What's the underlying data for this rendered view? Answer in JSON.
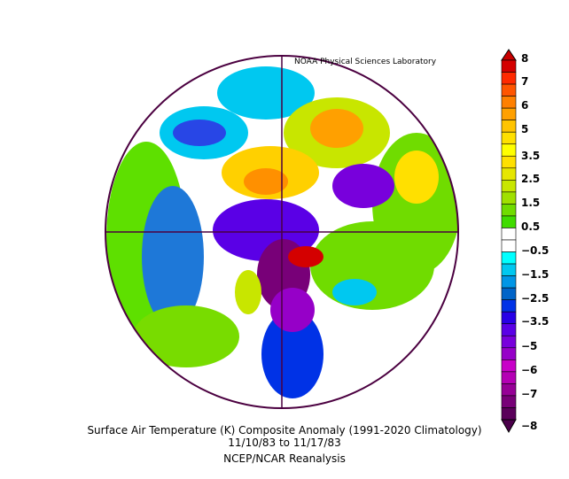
{
  "credit": "NOAA Physical Sciences Laboratory",
  "title": "Surface Air Temperature (K) Composite Anomaly (1991-2020 Climatology)",
  "dates": "11/10/83  to 11/17/83",
  "source": "NCEP/NCAR Reanalysis",
  "colorbar": {
    "labels": [
      "8",
      "7",
      "6",
      "5",
      "3.5",
      "2.5",
      "1.5",
      "0.5",
      "−0.5",
      "−1.5",
      "−2.5",
      "−3.5",
      "−5",
      "−6",
      "−7",
      "−8"
    ],
    "colors": [
      "#d40000",
      "#ff2a00",
      "#ff5500",
      "#ff8000",
      "#ffa000",
      "#ffc400",
      "#ffe000",
      "#ffff00",
      "#ffe000",
      "#e6e600",
      "#c8e600",
      "#a0e000",
      "#70dc00",
      "#40dc00",
      "#ffffff",
      "#ffffff",
      "#00ffff",
      "#00c8f0",
      "#0096e6",
      "#0064c8",
      "#0032e6",
      "#2800e6",
      "#5a00e6",
      "#7800dc",
      "#9600c8",
      "#c800c8",
      "#b400b4",
      "#960096",
      "#780078",
      "#5a005a"
    ],
    "top_color": "#c80000",
    "bottom_color": "#4b004b"
  }
}
